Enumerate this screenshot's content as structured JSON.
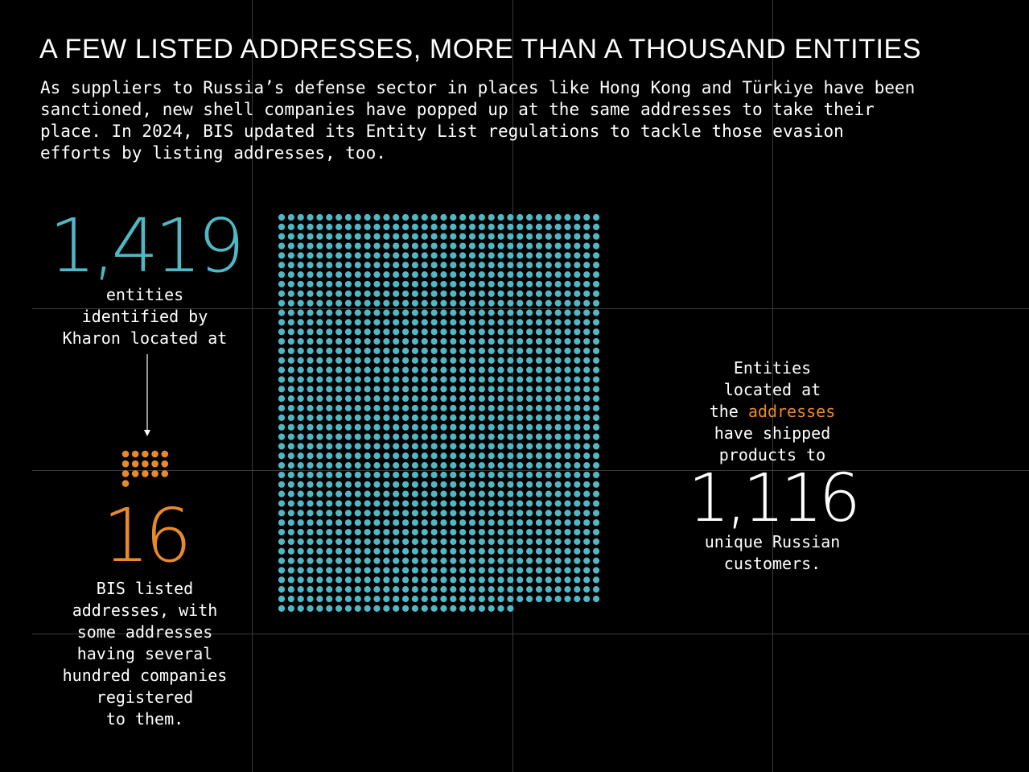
{
  "title": "A FEW LISTED ADDRESSES, MORE THAN A THOUSAND ENTITIES",
  "subtitle": "As suppliers to Russia’s defense sector in places like Hong Kong and Türkiye have been\nsanctioned, new shell companies have popped up at the same addresses to take their\nplace. In 2024, BIS updated its Entity List regulations to tackle those evasion\nefforts by listing addresses, too.",
  "colors": {
    "teal": "#4fb8c4",
    "orange": "#e8892c",
    "background": "#000000",
    "text": "#ffffff"
  },
  "chart_data": {
    "type": "waffle",
    "series": [
      {
        "value": 1419,
        "value_label": "1,419",
        "caption": "entities\nidentified by\nKharon located at",
        "color": "#4fb8c4"
      },
      {
        "value": 16,
        "value_label": "16",
        "caption": "BIS listed\naddresses, with\nsome addresses\nhaving several\nhundred companies\nregistered\nto them.",
        "color": "#e8892c"
      }
    ],
    "annotation": {
      "before": "Entities\nlocated at\nthe ",
      "highlight": "addresses",
      "after": "\nhave shipped\nproducts to",
      "value": 1116,
      "value_label": "1,116",
      "caption": "unique Russian\ncustomers."
    }
  }
}
